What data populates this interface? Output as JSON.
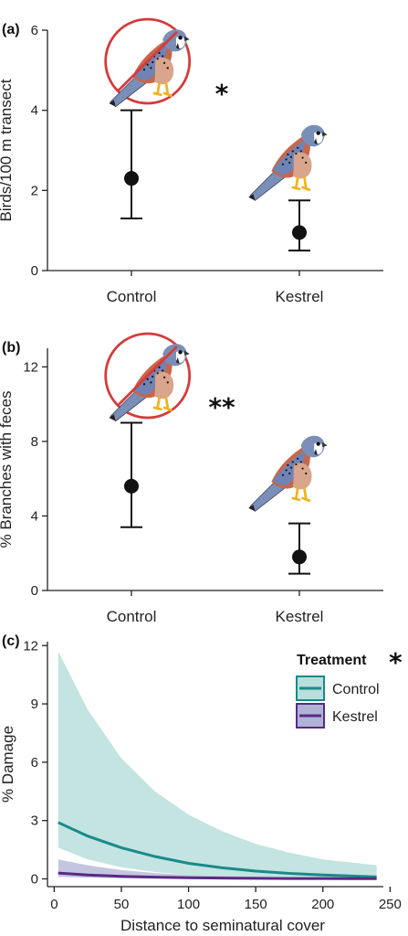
{
  "chart_data": [
    {
      "panel": "(a)",
      "type": "scatter",
      "categories": [
        "Control",
        "Kestrel"
      ],
      "values": [
        2.3,
        0.95
      ],
      "error_low": [
        1.3,
        0.5
      ],
      "error_high": [
        4.0,
        1.75
      ],
      "ylabel": "Birds/100 m transect",
      "ylim": [
        0,
        6
      ],
      "yticks": [
        "0",
        "2",
        "4",
        "6"
      ],
      "significance": "*",
      "icons": [
        "kestrel-prohibited-icon",
        "kestrel-icon"
      ]
    },
    {
      "panel": "(b)",
      "type": "scatter",
      "categories": [
        "Control",
        "Kestrel"
      ],
      "values": [
        5.6,
        1.8
      ],
      "error_low": [
        3.4,
        0.9
      ],
      "error_high": [
        9.0,
        3.6
      ],
      "ylabel": "% Branches with feces",
      "ylim": [
        0,
        13
      ],
      "yticks": [
        "0",
        "4",
        "8",
        "12"
      ],
      "significance": "**",
      "icons": [
        "kestrel-prohibited-icon",
        "kestrel-icon"
      ]
    },
    {
      "panel": "(c)",
      "type": "line",
      "xlabel": "Distance to seminatural cover",
      "ylabel": "% Damage",
      "xlim": [
        -5,
        245
      ],
      "ylim": [
        -0.4,
        12.2
      ],
      "xticks": [
        "0",
        "50",
        "100",
        "150",
        "200",
        "250"
      ],
      "yticks": [
        "0",
        "3",
        "6",
        "9",
        "12"
      ],
      "legend_title": "Treatment",
      "legend_significance": "*",
      "legend_position": "top-right",
      "series": [
        {
          "name": "Control",
          "color": "#1a8a8a",
          "ribbon_color": "#b9dfdc",
          "x": [
            3,
            25,
            50,
            75,
            100,
            125,
            150,
            175,
            200,
            240
          ],
          "y": [
            2.9,
            2.2,
            1.6,
            1.15,
            0.8,
            0.57,
            0.4,
            0.28,
            0.2,
            0.1
          ],
          "lower": [
            1.6,
            1.0,
            0.6,
            0.35,
            0.2,
            0.12,
            0.07,
            0.04,
            0.02,
            0.01
          ],
          "upper": [
            11.7,
            8.7,
            6.2,
            4.5,
            3.3,
            2.45,
            1.8,
            1.35,
            1.0,
            0.7
          ]
        },
        {
          "name": "Kestrel",
          "color": "#5a2a82",
          "ribbon_color": "#b0b3d6",
          "x": [
            3,
            25,
            50,
            75,
            100,
            125,
            150,
            175,
            200,
            240
          ],
          "y": [
            0.3,
            0.2,
            0.13,
            0.09,
            0.06,
            0.04,
            0.03,
            0.02,
            0.015,
            0.01
          ],
          "lower": [
            0.1,
            0.06,
            0.03,
            0.02,
            0.01,
            0.005,
            0.003,
            0.002,
            0.001,
            0.0
          ],
          "upper": [
            1.0,
            0.7,
            0.45,
            0.3,
            0.2,
            0.14,
            0.1,
            0.07,
            0.05,
            0.03
          ]
        }
      ]
    }
  ]
}
